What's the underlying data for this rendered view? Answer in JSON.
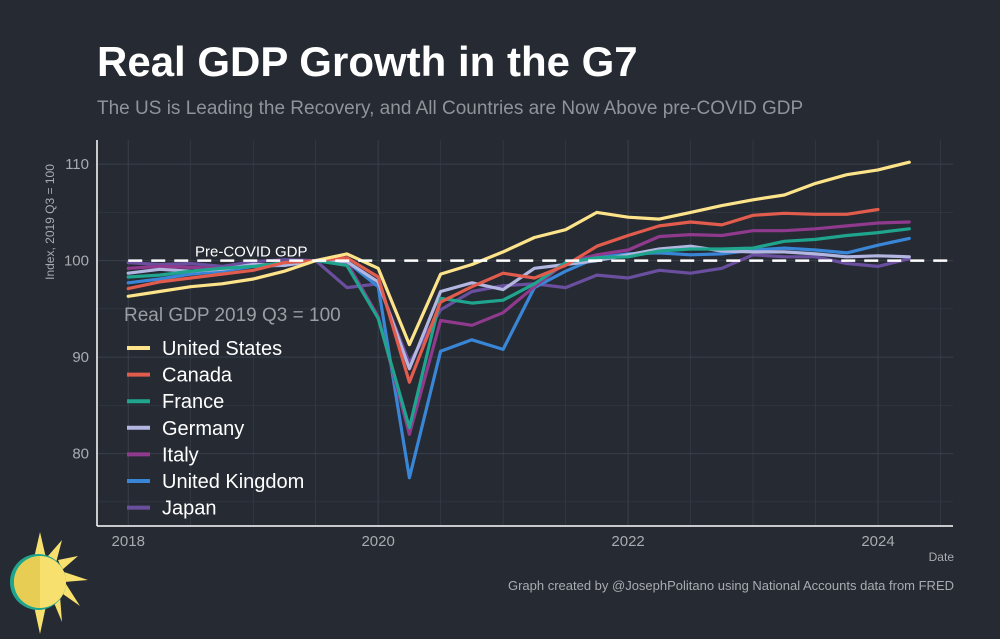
{
  "title": "Real GDP Growth in the G7",
  "subtitle": "The US is Leading the Recovery, and All Countries are Now Above pre-COVID GDP",
  "caption": "Graph created by @JosephPolitano using National Accounts data from FRED",
  "colors": {
    "background": "#252a33",
    "grid": "#3a404a",
    "axis": "#ffffff",
    "text": "#a8acb1"
  },
  "chart_data": {
    "type": "line",
    "xlabel": "Date",
    "ylabel": "Index, 2019 Q3 = 100",
    "xlim": [
      2017.75,
      2024.6
    ],
    "ylim": [
      72.5,
      112.5
    ],
    "xticks": [
      2018,
      2020,
      2022,
      2024
    ],
    "yticks": [
      80,
      90,
      100,
      110
    ],
    "x_start": 2018.0,
    "x_step": 0.25,
    "grid": true,
    "reference_line": {
      "y": 100,
      "label": "Pre-COVID GDP"
    },
    "legend": {
      "title": "Real GDP 2019 Q3 = 100",
      "placement": "left"
    },
    "series": [
      {
        "name": "United States",
        "color": "#fde38a",
        "values": [
          96.3,
          96.8,
          97.3,
          97.6,
          98.1,
          98.9,
          100.0,
          100.7,
          99.2,
          91.3,
          98.6,
          99.6,
          100.9,
          102.4,
          103.2,
          105.0,
          104.5,
          104.3,
          105.0,
          105.7,
          106.3,
          106.8,
          108.0,
          108.9,
          109.4,
          110.2
        ]
      },
      {
        "name": "Canada",
        "color": "#e25c4e",
        "values": [
          97.1,
          97.8,
          98.2,
          98.6,
          99.0,
          99.8,
          100.0,
          100.3,
          98.3,
          87.4,
          95.7,
          97.3,
          98.7,
          98.2,
          99.5,
          101.5,
          102.6,
          103.6,
          104.0,
          103.7,
          104.7,
          104.9,
          104.8,
          104.8,
          105.3
        ]
      },
      {
        "name": "France",
        "color": "#1fa58e",
        "values": [
          98.3,
          98.5,
          98.9,
          99.2,
          99.4,
          99.8,
          100.0,
          99.5,
          94.0,
          82.7,
          96.1,
          95.6,
          95.9,
          97.6,
          99.8,
          100.3,
          100.4,
          101.0,
          101.2,
          101.2,
          101.3,
          102.0,
          102.2,
          102.6,
          102.9,
          103.3
        ]
      },
      {
        "name": "Germany",
        "color": "#b3b6e1",
        "values": [
          98.7,
          99.1,
          98.9,
          99.1,
          99.6,
          99.5,
          100.0,
          99.9,
          97.8,
          88.8,
          96.8,
          97.7,
          97.0,
          99.2,
          99.6,
          100.0,
          100.6,
          101.2,
          101.5,
          101.0,
          100.9,
          100.9,
          100.7,
          100.4,
          100.5,
          100.4
        ]
      },
      {
        "name": "Italy",
        "color": "#8f3a8d",
        "values": [
          99.2,
          99.4,
          99.3,
          99.2,
          99.5,
          99.6,
          100.0,
          99.8,
          94.2,
          82.0,
          93.8,
          93.3,
          94.6,
          97.3,
          99.8,
          100.6,
          101.1,
          102.5,
          102.7,
          102.6,
          103.1,
          103.1,
          103.3,
          103.6,
          103.9,
          104.0
        ]
      },
      {
        "name": "United Kingdom",
        "color": "#3a86d6",
        "values": [
          97.7,
          98.1,
          98.6,
          98.9,
          99.4,
          99.5,
          100.0,
          99.9,
          97.3,
          77.5,
          90.6,
          91.8,
          90.8,
          97.2,
          98.9,
          100.3,
          100.7,
          100.8,
          100.6,
          100.7,
          101.1,
          101.3,
          101.1,
          100.8,
          101.6,
          102.3
        ]
      },
      {
        "name": "Japan",
        "color": "#6a4f9f",
        "values": [
          99.8,
          99.6,
          99.7,
          99.4,
          99.9,
          100.1,
          100.0,
          97.2,
          97.6,
          89.4,
          94.9,
          96.8,
          97.4,
          97.6,
          97.2,
          98.5,
          98.2,
          99.0,
          98.7,
          99.2,
          100.6,
          100.4,
          100.4,
          99.7,
          99.4,
          100.2
        ]
      }
    ]
  }
}
